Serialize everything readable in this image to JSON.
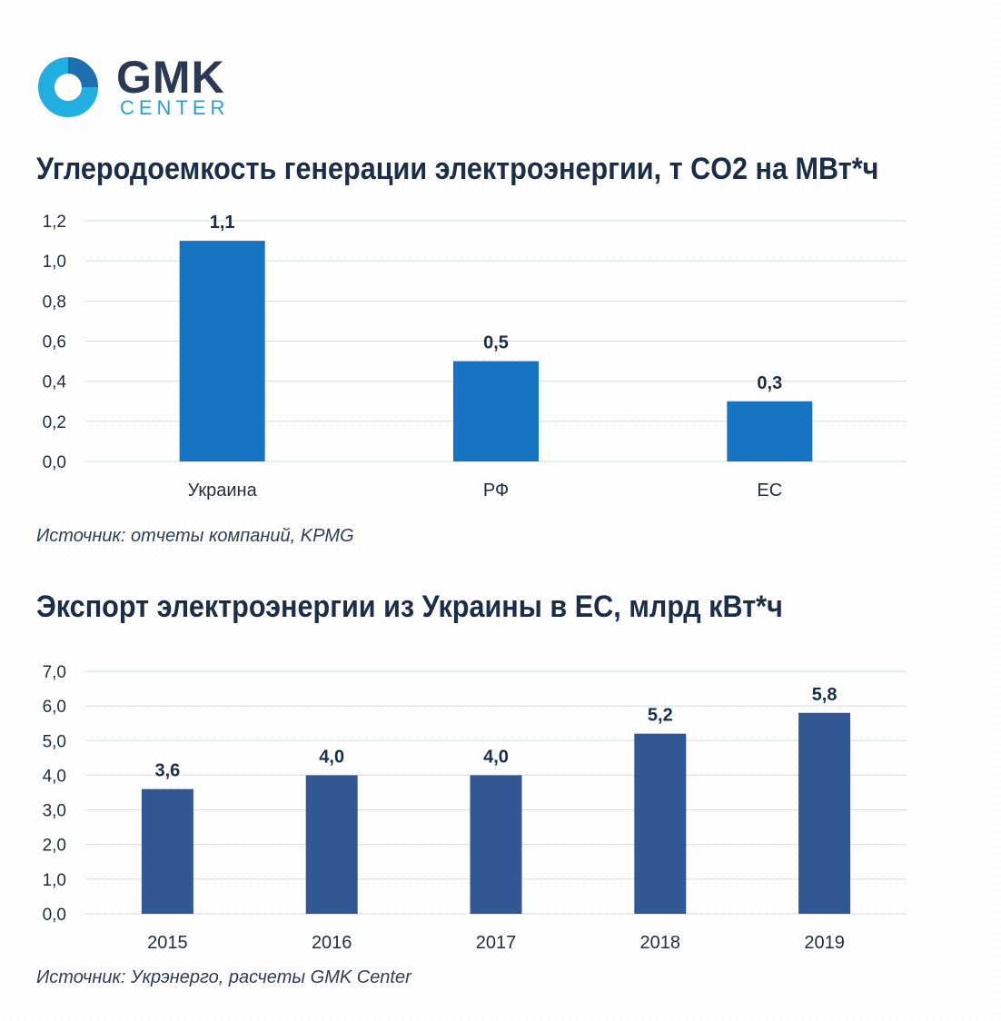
{
  "logo": {
    "brand": "GMK",
    "sub": "CENTER"
  },
  "chart_data": [
    {
      "type": "bar",
      "title": "Углеродоемкость генерации электроэнергии,  т CO2 на МВт*ч",
      "categories": [
        "Украина",
        "РФ",
        "ЕС"
      ],
      "values": [
        1.1,
        0.5,
        0.3
      ],
      "value_labels": [
        "1,1",
        "0,5",
        "0,3"
      ],
      "yticks": [
        0,
        0.2,
        0.4,
        0.6,
        0.8,
        1.0,
        1.2
      ],
      "ytick_labels": [
        "0,0",
        "0,2",
        "0,4",
        "0,6",
        "0,8",
        "1,0",
        "1,2"
      ],
      "ylim": [
        0,
        1.2
      ],
      "grid": true,
      "color": "#1674c3",
      "source": "Источник: отчеты компаний, KPMG"
    },
    {
      "type": "bar",
      "title": "Экспорт электроэнергии из Украины в ЕС, млрд кВт*ч",
      "categories": [
        "2015",
        "2016",
        "2017",
        "2018",
        "2019"
      ],
      "values": [
        3.6,
        4.0,
        4.0,
        5.2,
        5.8
      ],
      "value_labels": [
        "3,6",
        "4,0",
        "4,0",
        "5,2",
        "5,8"
      ],
      "yticks": [
        0,
        1,
        2,
        3,
        4,
        5,
        6,
        7
      ],
      "ytick_labels": [
        "0,0",
        "1,0",
        "2,0",
        "3,0",
        "4,0",
        "5,0",
        "6,0",
        "7,0"
      ],
      "ylim": [
        0,
        7
      ],
      "grid": true,
      "color": "#325894",
      "source": "Источник: Укрэнерго, расчеты GMK Center"
    }
  ]
}
